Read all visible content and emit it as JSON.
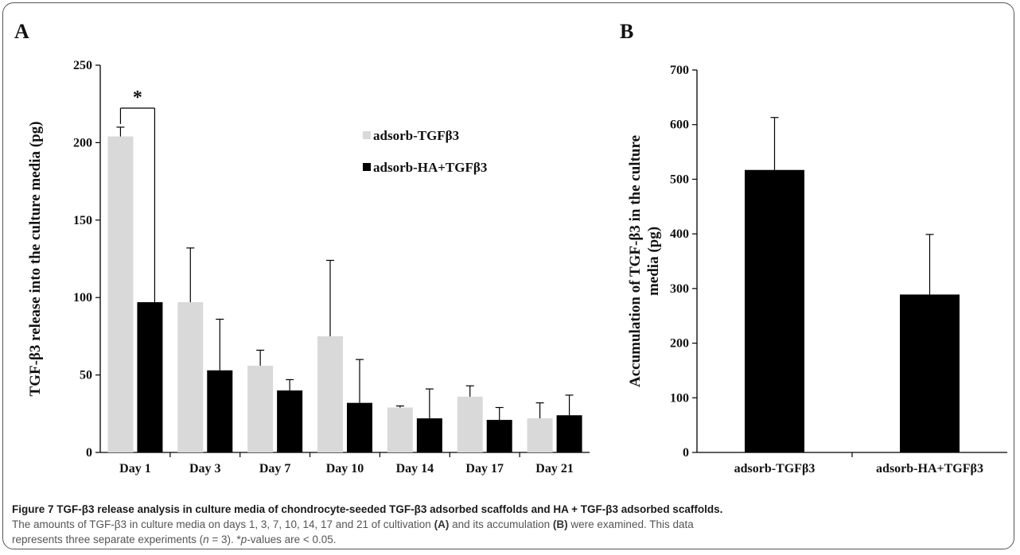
{
  "chart_data": [
    {
      "panel": "A",
      "type": "bar",
      "ylabel": "TGF-β3 release into the culture media (pg)",
      "xlabel": "",
      "ylim": [
        0,
        250
      ],
      "yticks": [
        "0",
        "50",
        "100",
        "150",
        "200",
        "250"
      ],
      "categories": [
        "Day 1",
        "Day 3",
        "Day 7",
        "Day 10",
        "Day 14",
        "Day 17",
        "Day 21"
      ],
      "series": [
        {
          "name": "adsorb-TGFβ3",
          "color": "#d9d9d9",
          "values": [
            204,
            97,
            56,
            75,
            29,
            36,
            22
          ],
          "errors": [
            6,
            35,
            10,
            49,
            1,
            7,
            10
          ]
        },
        {
          "name": "adsorb-HA+TGFβ3",
          "color": "#000000",
          "values": [
            97,
            53,
            40,
            32,
            22,
            21,
            24
          ],
          "errors": [
            0,
            33,
            7,
            28,
            19,
            8,
            13
          ]
        }
      ],
      "legend_position": "top-center",
      "annotations": [
        {
          "text": "*",
          "category": "Day 1"
        }
      ],
      "grid": false
    },
    {
      "panel": "B",
      "type": "bar",
      "ylabel": "Accumulation of TGF-β3 in the culture media (pg)",
      "ylabel_lines": [
        "Accumulation of TGF-β3 in the culture",
        "media (pg)"
      ],
      "xlabel": "",
      "ylim": [
        0,
        700
      ],
      "yticks": [
        "0",
        "100",
        "200",
        "300",
        "400",
        "500",
        "600",
        "700"
      ],
      "categories": [
        "adsorb-TGFβ3",
        "adsorb-HA+TGFβ3"
      ],
      "series": [
        {
          "color": "#000000",
          "values": [
            517,
            289
          ],
          "errors": [
            96,
            110
          ]
        }
      ],
      "grid": false
    }
  ],
  "caption": {
    "label": "Figure 7",
    "title": "TGF-β3 release analysis in culture media of chondrocyte-seeded TGF-β3 adsorbed scaffolds and HA + TGF-β3 adsorbed scaffolds.",
    "line2_pre": "The amounts of TGF-β3 in culture media on days 1, 3, 7, 10, 14, 17 and 21 of cultivation ",
    "line2_a": "(A)",
    "line2_mid": " and its accumulation ",
    "line2_b": "(B)",
    "line2_post": " were examined. This data",
    "line3_pre": "represents three separate experiments (",
    "line3_n": "n",
    "line3_mid": " = 3). *",
    "line3_p": "p",
    "line3_post": "-values are < 0.05."
  }
}
